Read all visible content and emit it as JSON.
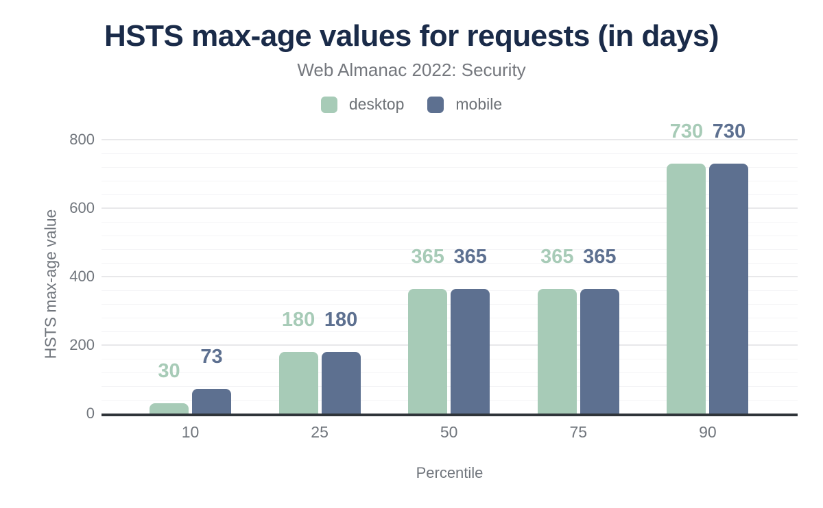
{
  "chart_data": {
    "type": "bar",
    "title": "HSTS max-age values for requests (in days)",
    "subtitle": "Web Almanac 2022: Security",
    "xlabel": "Percentile",
    "ylabel": "HSTS max-age value",
    "categories": [
      "10",
      "25",
      "50",
      "75",
      "90"
    ],
    "series": [
      {
        "name": "desktop",
        "color": "#a7cbb7",
        "values": [
          30,
          180,
          365,
          365,
          730
        ]
      },
      {
        "name": "mobile",
        "color": "#5d7090",
        "values": [
          73,
          180,
          365,
          365,
          730
        ]
      }
    ],
    "y_ticks": [
      0,
      200,
      400,
      600,
      800
    ],
    "ylim": [
      0,
      800
    ],
    "major_grid_step": 200,
    "minor_grid_step": 40,
    "grid": "horizontal, majors + light minors",
    "legend_position": "top-center",
    "data_labels": "value above each bar, colored per series"
  },
  "colors": {
    "title": "#1a2b49",
    "subtitle": "#75787e",
    "legend_label": "#6e7277",
    "tick_label": "#70757c",
    "axis_title": "#70757c",
    "axis_line": "#2f3439",
    "major_grid": "#e8e8ea",
    "minor_grid": "#f4f4f6",
    "background": "#ffffff"
  }
}
